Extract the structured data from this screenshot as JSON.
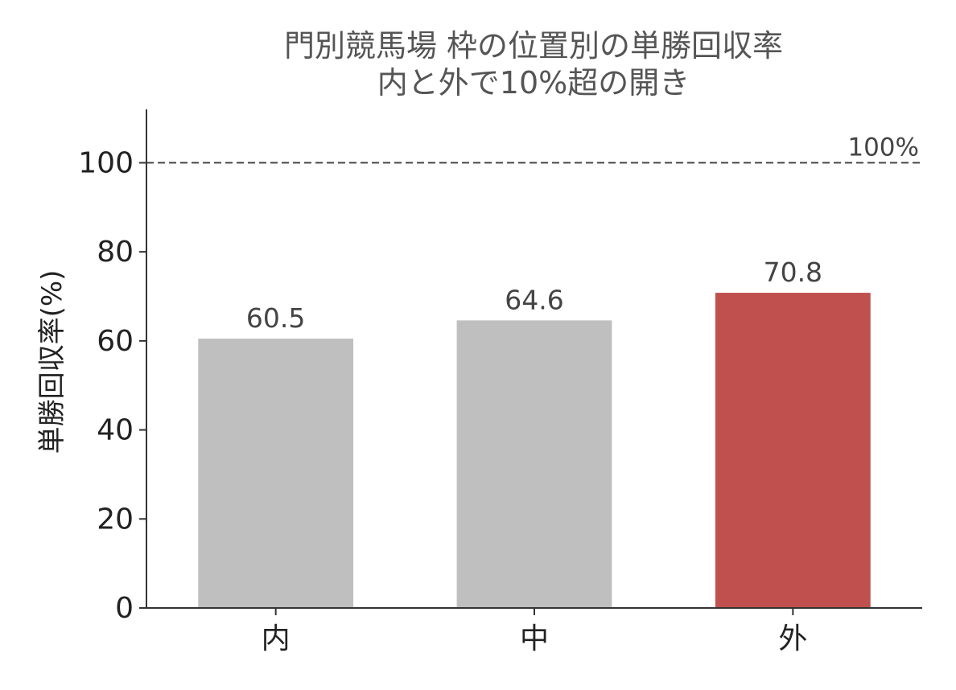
{
  "chart_data": {
    "type": "bar",
    "title_lines": [
      "門別競馬場 枠の位置別の単勝回収率",
      "内と外で10%超の開き"
    ],
    "xlabel": "",
    "ylabel": "単勝回収率(%)",
    "categories": [
      "内",
      "中",
      "外"
    ],
    "values": [
      60.5,
      64.6,
      70.8
    ],
    "value_labels": [
      "60.5",
      "64.6",
      "70.8"
    ],
    "bar_colors": [
      "#bfbfbf",
      "#bfbfbf",
      "#c0504d"
    ],
    "ylim": [
      0,
      112
    ],
    "yticks": [
      0,
      20,
      40,
      60,
      80,
      100
    ],
    "ytick_labels": [
      "0",
      "20",
      "40",
      "60",
      "80",
      "100"
    ],
    "reference_line": {
      "value": 100,
      "label": "100%",
      "style": "dashed",
      "color": "#444444"
    },
    "grid": false,
    "legend": "none"
  }
}
